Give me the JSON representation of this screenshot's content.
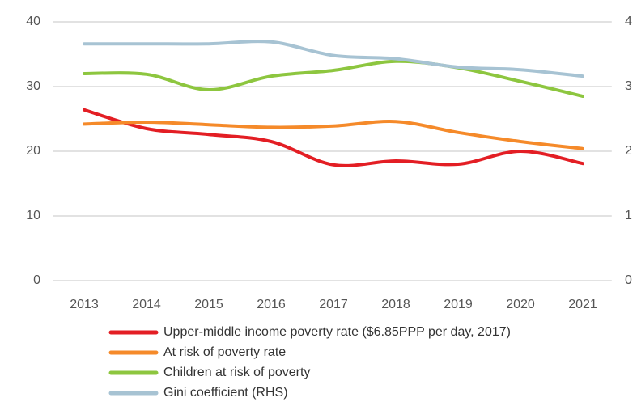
{
  "chart_data": {
    "type": "line",
    "categories": [
      "2013",
      "2014",
      "2015",
      "2016",
      "2017",
      "2018",
      "2019",
      "2020",
      "2021"
    ],
    "series": [
      {
        "name": "Upper-middle income poverty rate ($6.85PPP per day, 2017)",
        "color": "#e31e24",
        "values": [
          26.4,
          23.5,
          22.6,
          21.5,
          17.9,
          18.5,
          18.0,
          20.0,
          18.1
        ]
      },
      {
        "name": "At risk of poverty rate",
        "color": "#f58a2a",
        "values": [
          24.2,
          24.5,
          24.1,
          23.7,
          23.9,
          24.6,
          22.9,
          21.5,
          20.4
        ]
      },
      {
        "name": "Children at risk of poverty",
        "color": "#8dc63f",
        "values": [
          32.0,
          31.9,
          29.5,
          31.6,
          32.5,
          33.9,
          32.9,
          30.8,
          28.5
        ]
      },
      {
        "name": "Gini coefficient (RHS)",
        "color": "#a7c3d3",
        "axis": "y2",
        "values": [
          3.66,
          3.66,
          3.66,
          3.69,
          3.48,
          3.43,
          3.3,
          3.26,
          3.16
        ]
      }
    ],
    "ylim": [
      0,
      40
    ],
    "yticks": [
      0,
      10,
      20,
      30,
      40
    ],
    "y2lim": [
      0,
      4
    ],
    "y2ticks": [
      0,
      1,
      2,
      3,
      4
    ],
    "grid": true,
    "legend": "bottom"
  }
}
